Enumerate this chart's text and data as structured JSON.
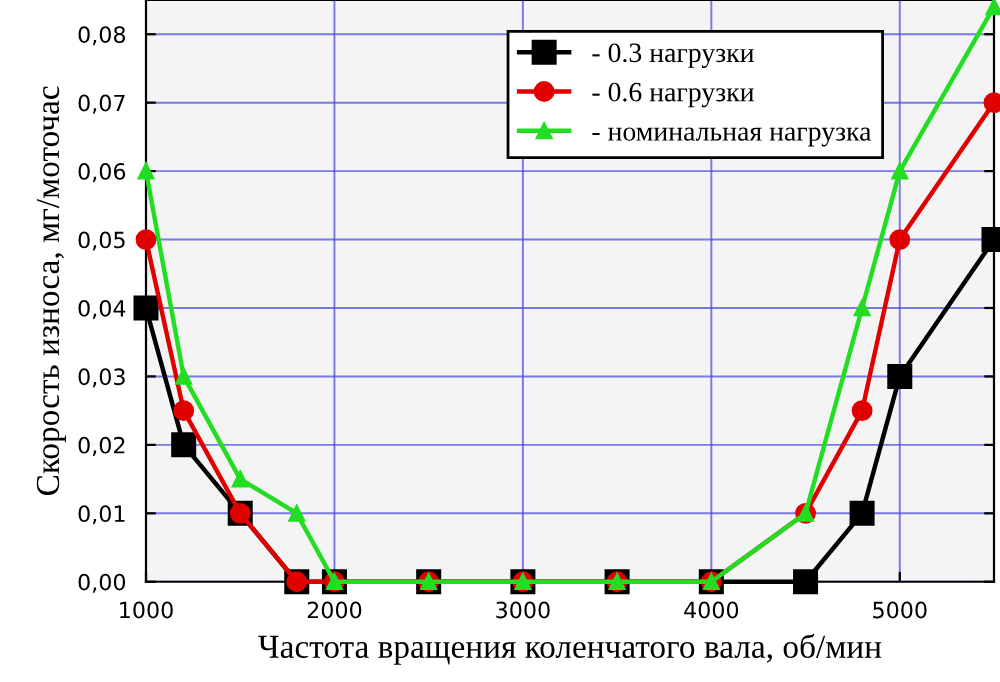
{
  "chart_data": {
    "type": "line",
    "xlabel": "Частота вращения коленчатого вала, об/мин",
    "ylabel": "Скорость износа, мг/моточас",
    "x": [
      1000,
      1200,
      1500,
      1800,
      2000,
      2500,
      3000,
      3500,
      4000,
      4500,
      4800,
      5000,
      5500
    ],
    "series": [
      {
        "name": "- 0.3 нагрузки",
        "color": "#000000",
        "marker": "square",
        "values": [
          0.04,
          0.02,
          0.01,
          0,
          0,
          0,
          0,
          0,
          0,
          0,
          0.01,
          0.03,
          0.05
        ]
      },
      {
        "name": "- 0.6 нагрузки",
        "color": "#e00000",
        "marker": "circle",
        "values": [
          0.05,
          0.025,
          0.01,
          0,
          0,
          0,
          0,
          0,
          0,
          0.01,
          0.025,
          0.05,
          0.07
        ]
      },
      {
        "name": "- номинальная нагрузка",
        "color": "#22dd22",
        "marker": "triangle",
        "values": [
          0.06,
          0.03,
          0.015,
          0.01,
          0,
          0,
          0,
          0,
          0,
          0.01,
          0.04,
          0.06,
          0.084
        ]
      }
    ],
    "xlim": [
      1000,
      5500
    ],
    "xticks": [
      1000,
      2000,
      3000,
      4000,
      5000
    ],
    "ylim": [
      0,
      0.085
    ],
    "yticks": [
      {
        "value": 0,
        "label": "0,00"
      },
      {
        "value": 0.01,
        "label": "0,01"
      },
      {
        "value": 0.02,
        "label": "0,02"
      },
      {
        "value": 0.03,
        "label": "0,03"
      },
      {
        "value": 0.04,
        "label": "0,04"
      },
      {
        "value": 0.05,
        "label": "0,05"
      },
      {
        "value": 0.06,
        "label": "0,06"
      },
      {
        "value": 0.07,
        "label": "0,07"
      },
      {
        "value": 0.08,
        "label": "0,08"
      }
    ],
    "grid": true,
    "legend": "top right",
    "line_style": "solid"
  }
}
